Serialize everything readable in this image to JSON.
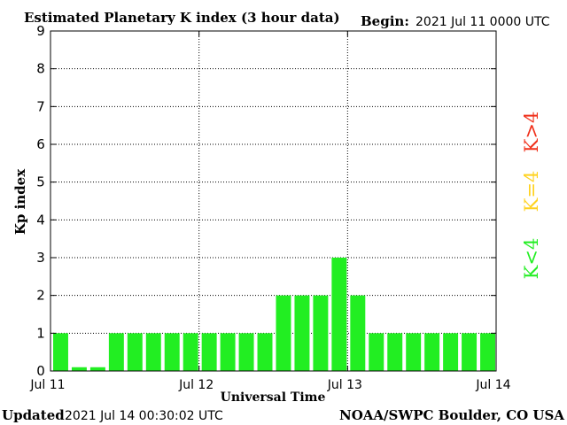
{
  "header": {
    "title": "Estimated Planetary K index (3 hour data)",
    "begin_label": "Begin:",
    "begin_value": "2021 Jul 11 0000 UTC"
  },
  "footer": {
    "updated_label": "Updated",
    "updated_value": "2021 Jul 14 00:30:02 UTC",
    "credit": "NOAA/SWPC Boulder, CO USA"
  },
  "legend": {
    "items": [
      {
        "label": "K<4",
        "color": "#22ee22"
      },
      {
        "label": "K=4",
        "color": "#ffd21f"
      },
      {
        "label": "K>4",
        "color": "#f0301a"
      }
    ]
  },
  "colors": {
    "bar": "#22ee22",
    "axis": "#000000",
    "grid": "#000000"
  },
  "chart_data": {
    "type": "bar",
    "title": "Estimated Planetary K index (3 hour data)",
    "xlabel": "Universal Time",
    "ylabel": "Kp index",
    "ylim": [
      0,
      9
    ],
    "yticks": [
      "0",
      "1",
      "2",
      "3",
      "4",
      "5",
      "6",
      "7",
      "8",
      "9"
    ],
    "xticks": [
      "Jul 11",
      "Jul 12",
      "Jul 13",
      "Jul 14"
    ],
    "grid": true,
    "interval_hours": 3,
    "values": [
      1,
      0.1,
      0.1,
      1,
      1,
      1,
      1,
      1,
      1,
      1,
      1,
      1,
      2,
      2,
      2,
      3,
      2,
      1,
      1,
      1,
      1,
      1,
      1,
      1
    ]
  }
}
